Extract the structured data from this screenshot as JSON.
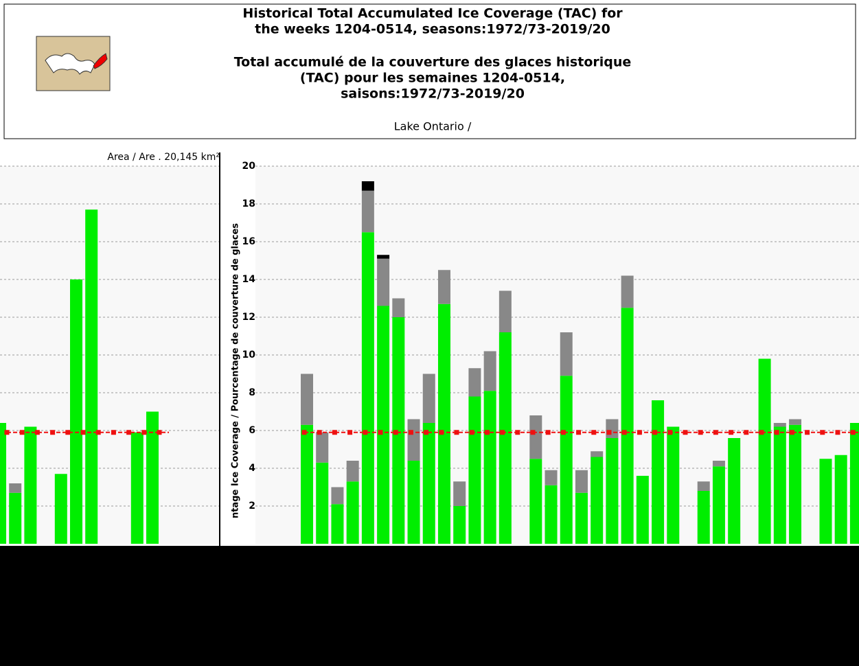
{
  "header": {
    "title_en": [
      "Historical Total Accumulated Ice Coverage (TAC) for",
      "the weeks 1204-0514, seasons:1972/73-2019/20"
    ],
    "title_fr": [
      "Total accumulé de la couverture des glaces historique",
      "(TAC) pour les semaines 1204-0514,",
      "saisons:1972/73-2019/20"
    ],
    "subtitle": "Lake Ontario /"
  },
  "chart_data": [
    {
      "type": "bar",
      "annotation": "Area / Are . 20,145 km²",
      "categories": [
        null,
        null,
        null,
        null,
        null,
        null,
        null,
        null,
        null,
        null,
        null,
        null
      ],
      "series": [
        {
          "color": "#00ee00",
          "values": [
            6.4,
            2.7,
            6.2,
            null,
            3.7,
            14.0,
            17.7,
            null,
            null,
            5.9,
            7.0,
            null
          ]
        },
        {
          "color": "#888888",
          "values": [
            null,
            0.5,
            null,
            null,
            null,
            null,
            null,
            null,
            null,
            null,
            null,
            null
          ]
        }
      ],
      "average": 5.9,
      "average_color": "#ee1111",
      "ylim": [
        0,
        20
      ],
      "grid": true
    },
    {
      "type": "bar",
      "ylabel": "ntage Ice Coverage / Pourcentage de couverture de glaces",
      "categories": [
        null,
        null,
        null,
        null,
        null,
        null,
        null,
        null,
        null,
        null,
        null,
        null,
        null,
        null,
        null,
        null,
        null,
        null,
        null,
        null,
        null,
        null,
        null,
        null,
        null,
        null,
        null,
        null,
        null,
        null,
        null,
        null,
        null,
        null,
        null,
        null,
        null
      ],
      "series": [
        {
          "color": "#00ee00",
          "values": [
            6.3,
            4.3,
            2.1,
            3.3,
            16.5,
            12.6,
            12.0,
            4.4,
            6.4,
            12.7,
            2.0,
            7.8,
            8.1,
            11.2,
            null,
            4.5,
            3.1,
            8.9,
            2.7,
            4.6,
            5.6,
            12.5,
            3.6,
            7.6,
            6.2,
            null,
            2.8,
            4.1,
            5.6,
            null,
            9.8,
            6.2,
            6.3,
            null,
            4.5,
            4.7,
            6.4
          ]
        },
        {
          "color": "#888888",
          "values": [
            2.7,
            1.6,
            0.9,
            1.1,
            2.2,
            2.5,
            1.0,
            2.2,
            2.6,
            1.8,
            1.3,
            1.5,
            2.1,
            2.2,
            null,
            2.3,
            0.8,
            2.3,
            1.2,
            0.3,
            1.0,
            1.7,
            null,
            null,
            null,
            null,
            0.5,
            0.3,
            null,
            null,
            null,
            0.2,
            0.3,
            null,
            null,
            null,
            null
          ]
        },
        {
          "color": "#000000",
          "values": [
            null,
            null,
            null,
            null,
            0.5,
            0.2,
            null,
            null,
            null,
            null,
            null,
            null,
            null,
            null,
            null,
            null,
            null,
            null,
            null,
            null,
            null,
            null,
            null,
            null,
            null,
            null,
            null,
            null,
            null,
            null,
            null,
            null,
            null,
            null,
            null,
            null,
            null
          ]
        }
      ],
      "average": 5.9,
      "average_color": "#ee1111",
      "ylim": [
        0,
        20
      ],
      "yticks": [
        2,
        4,
        6,
        8,
        10,
        12,
        14,
        16,
        18,
        20
      ],
      "grid": true
    }
  ]
}
